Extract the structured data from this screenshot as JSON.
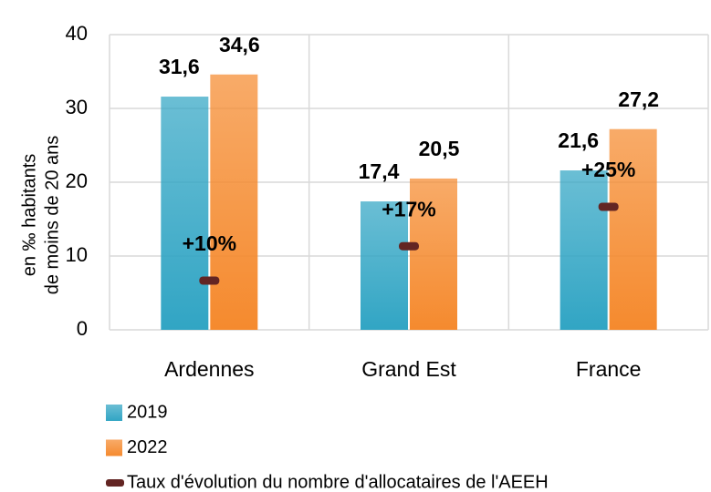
{
  "chart_data": {
    "type": "bar",
    "y_label": [
      "en ‰ habitants",
      "de moins de 20 ans"
    ],
    "categories": [
      "Ardennes",
      "Grand Est",
      "France"
    ],
    "series": [
      {
        "name": "2019",
        "color": "#31a5c4",
        "label_color": "#215a69",
        "values": [
          31.6,
          17.4,
          21.6
        ],
        "value_labels": [
          "31,6",
          "17,4",
          "21,6"
        ]
      },
      {
        "name": "2022",
        "color": "#f58a2e",
        "label_color": "#e8771a",
        "values": [
          34.6,
          20.5,
          27.2
        ],
        "value_labels": [
          "34,6",
          "20,5",
          "27,2"
        ]
      },
      {
        "name": "Taux d'évolution du nombre d'allocataires de l'AEEH",
        "color": "#632523",
        "label_color": "#632523",
        "axis": "y2",
        "marker": "dash",
        "values": [
          10,
          17,
          25
        ],
        "value_labels": [
          "+10%",
          "+17%",
          "+25%"
        ]
      }
    ],
    "ylim": [
      0,
      40
    ],
    "yticks": [
      0,
      10,
      20,
      30,
      40
    ],
    "y2lim": [
      0,
      60
    ],
    "grid": true
  }
}
